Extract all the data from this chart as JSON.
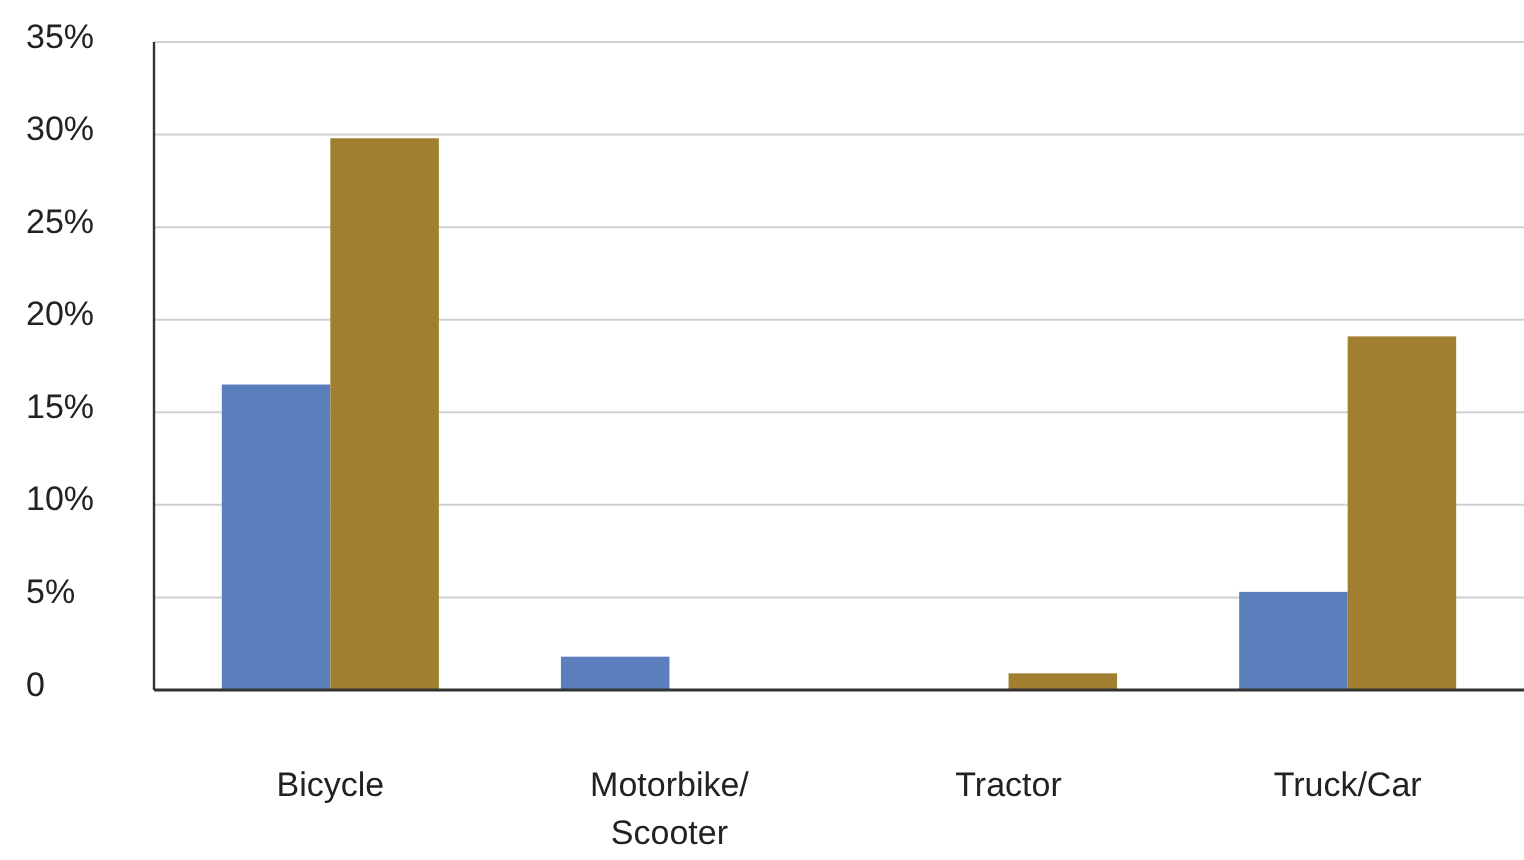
{
  "chart_data": {
    "type": "bar",
    "categories": [
      "Bicycle",
      "Motorbike/Scooter",
      "Tractor",
      "Truck/Car"
    ],
    "series": [
      {
        "color": "#5b7fbd",
        "values": [
          16.5,
          1.8,
          0,
          5.3
        ]
      },
      {
        "color": "#a08030",
        "values": [
          29.8,
          0,
          0.9,
          19.1
        ]
      }
    ],
    "ylim": [
      0,
      35
    ],
    "yticks": [
      0,
      {
        "value": 5,
        "label": "5%"
      },
      {
        "value": 10,
        "label": "10%"
      },
      {
        "value": 15,
        "label": "15%"
      },
      {
        "value": 20,
        "label": "20%"
      },
      {
        "value": 25,
        "label": "25%"
      },
      {
        "value": 30,
        "label": "30%"
      },
      {
        "value": 35,
        "label": "35%"
      }
    ],
    "grid": "y"
  }
}
